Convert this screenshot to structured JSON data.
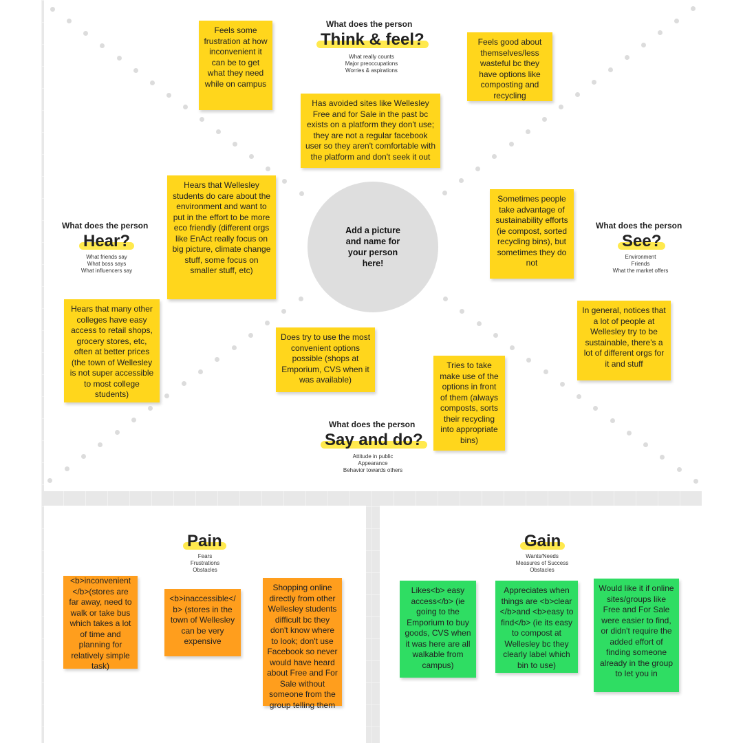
{
  "center": {
    "avatar_text": "Add a picture and name for your person here!"
  },
  "think_feel": {
    "prompt": "What does the person",
    "title": "Think & feel?",
    "subs": [
      "What really counts",
      "Major preoccupations",
      "Worries & aspirations"
    ],
    "notes": [
      "Feels some frustration at how inconvenient it can be to get what they need while on campus",
      "Feels good about themselves/less wasteful bc they have options like composting and recycling",
      "Has avoided sites like Wellesley Free and for Sale in the past bc exists on a platform they don't use; they are not a regular facebook user so they aren't comfortable with the platform and don't seek it out"
    ]
  },
  "hear": {
    "prompt": "What does the person",
    "title": "Hear?",
    "subs": [
      "What friends say",
      "What boss says",
      "What influencers say"
    ],
    "notes": [
      "Hears that Wellesley students do care about the environment and want to put in the effort to be more eco friendly (different orgs like EnAct really focus on big picture, climate change stuff, some focus on smaller stuff, etc)",
      "Hears that many other colleges have easy access to retail shops, grocery stores, etc, often at better prices (the town of Wellesley is not super accessible to most college students)"
    ]
  },
  "see": {
    "prompt": "What does the person",
    "title": "See?",
    "subs": [
      "Environment",
      "Friends",
      "What the market offers"
    ],
    "notes": [
      "Sometimes people take advantage of sustainability efforts (ie compost, sorted recycling bins), but sometimes they do not",
      "In general, notices that a lot of people at Wellesley try to be sustainable, there's a lot of different orgs for it and stuff"
    ]
  },
  "say_do": {
    "prompt": "What does the person",
    "title": "Say and do?",
    "subs": [
      "Attitude in public",
      "Appearance",
      "Behavior towards others"
    ],
    "notes": [
      "Does try to use the most convenient options possible (shops at Emporium, CVS when it was available)",
      "Tries to take make use of the options in front of them (always composts, sorts their recycling into appropriate bins)"
    ]
  },
  "pain": {
    "title": "Pain",
    "subs": [
      "Fears",
      "Frustrations",
      "Obstacles"
    ],
    "notes": [
      "<b>inconvenient </b>(stores are far away, need to walk or take bus which takes a lot of time and planning for relatively simple task)",
      "<b>inaccessible</ b> (stores in the town of Wellesley can be very expensive",
      "Shopping online directly from other Wellesley students difficult bc they don't know where to look; don't use Facebook so never would have heard about Free and For Sale without someone from the group telling them"
    ]
  },
  "gain": {
    "title": "Gain",
    "subs": [
      "Wants/Needs",
      "Measures of Success",
      "Obstacles"
    ],
    "notes": [
      "Likes<b> easy access</b> (ie going to the Emporium to buy goods, CVS when it was here are all walkable from campus)",
      "Appreciates when things are <b>clear </b>and <b>easy to find</b> (ie its easy to compost at Wellesley bc they clearly label which bin to use)",
      "Would like it if online sites/groups like Free and For Sale were easier to find, or didn't require the added effort of finding someone already in the group to let you in"
    ]
  },
  "colors": {
    "yellow": "#ffd61c",
    "orange": "#ff9e1d",
    "green": "#2fdd63",
    "highlight": "#ffe94d"
  }
}
